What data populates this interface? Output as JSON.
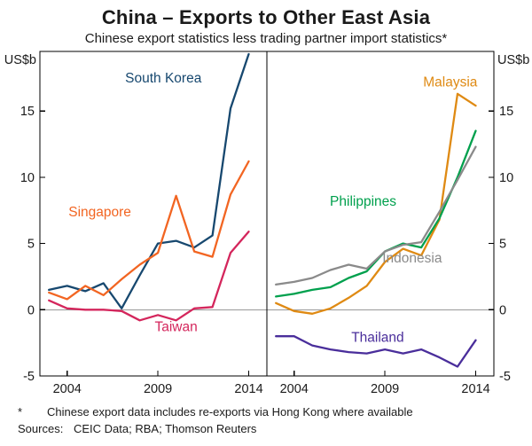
{
  "header": {
    "title": "China – Exports to Other East Asia",
    "subtitle": "Chinese export statistics less trading partner import statistics*"
  },
  "footnote": {
    "marker": "*",
    "text": "Chinese export data includes re-exports via Hong Kong where available",
    "sources_label": "Sources:",
    "sources": "CEIC Data; RBA; Thomson Reuters"
  },
  "chart_data": {
    "type": "line",
    "title": "China – Exports to Other East Asia",
    "subtitle": "Chinese export statistics less trading partner import statistics*",
    "unit": "US$b",
    "ylabel": "US$b",
    "ylim": [
      -5,
      19.5
    ],
    "yticks": [
      -5,
      0,
      5,
      10,
      15
    ],
    "x_years": [
      2003,
      2004,
      2005,
      2006,
      2007,
      2008,
      2009,
      2010,
      2011,
      2012,
      2013,
      2014
    ],
    "xticks": [
      2004,
      2009,
      2014
    ],
    "x_range": [
      2002.5,
      2015
    ],
    "grid": false,
    "zero_line": true,
    "legend_position": "inline-labels",
    "frame_color": "#000000",
    "zero_line_color": "#999999",
    "panels": [
      {
        "id": "left",
        "series": [
          {
            "name": "South Korea",
            "color": "#17486f",
            "values": [
              1.5,
              1.8,
              1.4,
              2.0,
              0.1,
              2.6,
              5.0,
              5.2,
              4.7,
              5.6,
              15.2,
              19.3
            ],
            "label": {
              "x": 2009.3,
              "y": 17.5
            }
          },
          {
            "name": "Singapore",
            "color": "#f26522",
            "values": [
              1.3,
              0.8,
              1.8,
              1.1,
              2.3,
              3.4,
              4.3,
              8.6,
              4.4,
              4.0,
              8.7,
              11.2
            ],
            "label": {
              "x": 2005.8,
              "y": 7.4
            }
          },
          {
            "name": "Taiwan",
            "color": "#d4265c",
            "values": [
              0.7,
              0.1,
              0.0,
              0.0,
              -0.1,
              -0.8,
              -0.4,
              -0.8,
              0.1,
              0.2,
              4.3,
              5.9
            ],
            "label": {
              "x": 2010.0,
              "y": -1.3
            }
          }
        ]
      },
      {
        "id": "right",
        "series": [
          {
            "name": "Malaysia",
            "color": "#df8a13",
            "values": [
              0.5,
              -0.1,
              -0.3,
              0.1,
              0.9,
              1.8,
              3.6,
              4.6,
              4.1,
              6.8,
              16.3,
              15.4
            ],
            "label": {
              "x": 2012.6,
              "y": 17.2
            }
          },
          {
            "name": "Philippines",
            "color": "#00a04d",
            "values": [
              1.0,
              1.2,
              1.5,
              1.7,
              2.4,
              2.9,
              4.4,
              5.0,
              4.7,
              6.9,
              10.0,
              13.5
            ],
            "label": {
              "x": 2007.8,
              "y": 8.2
            }
          },
          {
            "name": "Indonesia",
            "color": "#8a8a8a",
            "values": [
              1.9,
              2.1,
              2.4,
              3.0,
              3.4,
              3.1,
              4.4,
              4.9,
              5.1,
              7.4,
              9.8,
              12.3
            ],
            "label": {
              "x": 2010.5,
              "y": 3.9
            }
          },
          {
            "name": "Thailand",
            "color": "#4a2e9b",
            "values": [
              -2.0,
              -2.0,
              -2.7,
              -3.0,
              -3.2,
              -3.3,
              -3.0,
              -3.3,
              -3.0,
              -3.6,
              -4.3,
              -2.3
            ],
            "label": {
              "x": 2008.6,
              "y": -2.1
            }
          }
        ]
      }
    ]
  }
}
